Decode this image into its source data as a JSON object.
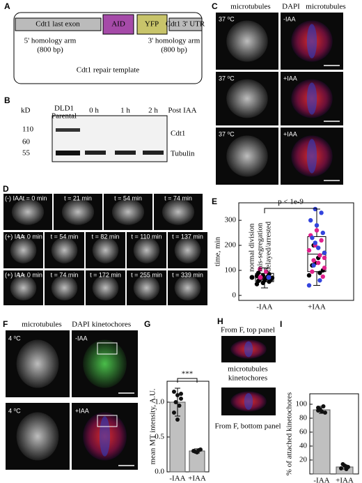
{
  "figure": {
    "panel_labels": [
      "A",
      "B",
      "C",
      "D",
      "E",
      "F",
      "G",
      "H",
      "I"
    ],
    "A": {
      "exon": "Cdt1 last exon",
      "aid": "AID",
      "yfp": "YFP",
      "utr": "Cdt1 3' UTR",
      "arm5": "5' homology arm",
      "arm5_size": "(800 bp)",
      "arm3": "3' homology arm",
      "arm3_size": "(800 bp)",
      "template": "Cdt1 repair template"
    },
    "B": {
      "kd": "kD",
      "lane0": "DLD1",
      "lane0b": "Parental",
      "lanes": [
        "0 h",
        "1 h",
        "2 h"
      ],
      "post": "Post IAA",
      "markers": [
        "110",
        "60",
        "55"
      ],
      "cdt1": "Cdt1",
      "tubulin": "Tubulin"
    },
    "C": {
      "header": [
        "microtubules",
        "DAPI",
        "microtubules"
      ],
      "temps": [
        "37 ⁰C",
        "37 ⁰C",
        "37 ⁰C"
      ],
      "conditions": [
        "-IAA",
        "+IAA",
        "+IAA"
      ]
    },
    "D": {
      "rows": [
        {
          "condition": "(-) IAA",
          "times": [
            "t = 0 min",
            "t = 21 min",
            "t = 54 min",
            "t = 74 min"
          ]
        },
        {
          "condition": "(+) IAA",
          "times": [
            "t = 0 min",
            "t = 54 min",
            "t = 82 min",
            "t = 110 min",
            "t = 137 min"
          ]
        },
        {
          "condition": "(+) IAA",
          "times": [
            "t = 0 min",
            "t = 74 min",
            "t = 172 min",
            "t = 255 min",
            "t = 339 min"
          ]
        }
      ]
    },
    "F": {
      "header": [
        "microtubules",
        "DAPI",
        "kinetochores"
      ],
      "temps": [
        "4 ⁰C",
        "4 ⁰C"
      ],
      "conditions": [
        "-IAA",
        "+IAA"
      ]
    },
    "H": {
      "top": "From F, top panel",
      "legend": [
        "microtubules",
        "kinetochores"
      ],
      "bottom": "From F, bottom panel"
    }
  },
  "chart_data": [
    {
      "type": "box",
      "ylabel": "time, min",
      "categories": [
        "-IAA",
        "+IAA"
      ],
      "ylim": [
        -20,
        370
      ],
      "yticks": [
        0,
        100,
        200,
        300
      ],
      "annotation": "p < 1e-9",
      "boxes": [
        {
          "whisker_low": 30,
          "q1": 55,
          "median": 70,
          "q3": 88,
          "whisker_high": 110
        },
        {
          "whisker_low": 40,
          "q1": 95,
          "median": 165,
          "q3": 235,
          "whisker_high": 345
        }
      ],
      "series": [
        {
          "name": "normal division",
          "color": "#000000",
          "x": [
            "-IAA",
            "-IAA",
            "-IAA",
            "-IAA",
            "-IAA",
            "-IAA",
            "-IAA",
            "-IAA",
            "-IAA",
            "-IAA",
            "-IAA",
            "-IAA",
            "-IAA",
            "-IAA",
            "-IAA",
            "-IAA",
            "+IAA",
            "+IAA",
            "+IAA",
            "+IAA",
            "+IAA",
            "+IAA",
            "+IAA",
            "+IAA"
          ],
          "values": [
            45,
            50,
            55,
            58,
            60,
            62,
            65,
            68,
            70,
            72,
            75,
            78,
            80,
            85,
            90,
            60,
            100,
            120,
            150,
            170,
            200,
            90,
            80,
            130
          ]
        },
        {
          "name": "mis-segregation",
          "color": "#e0208c",
          "x": [
            "-IAA",
            "-IAA",
            "+IAA",
            "+IAA",
            "+IAA",
            "+IAA",
            "+IAA",
            "+IAA",
            "+IAA",
            "+IAA",
            "+IAA",
            "+IAA",
            "+IAA",
            "+IAA"
          ],
          "values": [
            105,
            95,
            110,
            140,
            160,
            180,
            200,
            220,
            240,
            260,
            75,
            95,
            130,
            150
          ]
        },
        {
          "name": "delayed/arrested",
          "color": "#3344dd",
          "x": [
            "+IAA",
            "+IAA",
            "+IAA",
            "+IAA",
            "+IAA",
            "+IAA",
            "+IAA",
            "+IAA",
            "+IAA",
            "+IAA",
            "+IAA",
            "+IAA"
          ],
          "values": [
            345,
            330,
            300,
            280,
            250,
            230,
            190,
            170,
            120,
            60,
            40,
            210
          ]
        }
      ]
    },
    {
      "type": "bar",
      "ylabel": "mean MT intensity, A.U.",
      "categories": [
        "-IAA",
        "+IAA"
      ],
      "values": [
        1.0,
        0.3
      ],
      "errors": [
        0.2,
        0.03
      ],
      "points": [
        [
          1.15,
          1.1,
          1.05,
          1.0,
          0.95,
          0.85,
          0.75,
          1.12
        ],
        [
          0.3,
          0.28,
          0.32,
          0.29,
          0.31
        ]
      ],
      "color": "#c0c0c0",
      "ylim": [
        0,
        1.3
      ],
      "yticks": [
        {
          "value": 0,
          "label": "0.0"
        },
        {
          "value": 0.5,
          "label": "0.5"
        },
        {
          "value": 1,
          "label": "1.0"
        }
      ],
      "annotation": "***"
    },
    {
      "type": "bar",
      "ylabel": "% of attached kinetochores",
      "categories": [
        "-IAA",
        "+IAA"
      ],
      "values": [
        92,
        10
      ],
      "errors": [
        5,
        3
      ],
      "points": [
        [
          95,
          90,
          88,
          93,
          97,
          91
        ],
        [
          8,
          12,
          10,
          14,
          7
        ]
      ],
      "color": "#c0c0c0",
      "ylim": [
        0,
        115
      ],
      "yticks": [
        20,
        40,
        60,
        80,
        100
      ]
    }
  ]
}
